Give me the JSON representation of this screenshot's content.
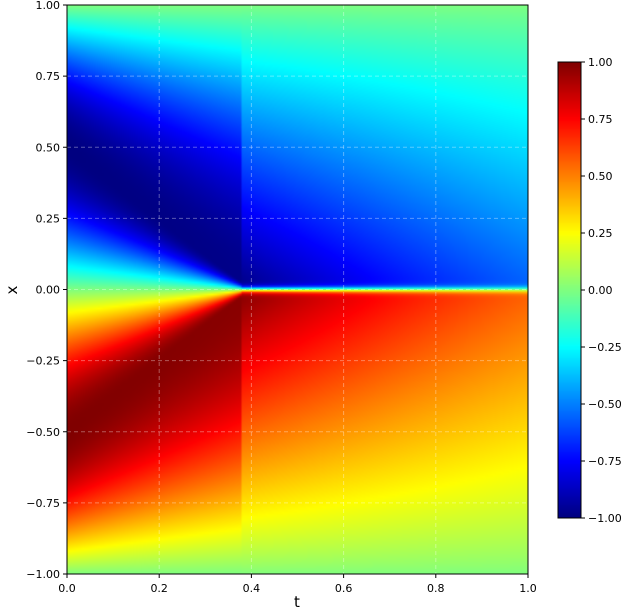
{
  "chart_data": {
    "type": "heatmap",
    "title": "",
    "xlabel": "t",
    "ylabel": "x",
    "xlim": [
      0.0,
      1.0
    ],
    "ylim": [
      -1.0,
      1.0
    ],
    "grid": true,
    "colormap": "jet",
    "colorbar": {
      "range": [
        -1.0,
        1.0
      ],
      "ticks": [
        "1.00",
        "0.75",
        "0.50",
        "0.25",
        "0.00",
        "−0.25",
        "−0.50",
        "−0.75",
        "−1.00"
      ],
      "tick_values": [
        1.0,
        0.75,
        0.5,
        0.25,
        0.0,
        -0.25,
        -0.5,
        -0.75,
        -1.0
      ]
    },
    "x_ticks": [
      "0.0",
      "0.2",
      "0.4",
      "0.6",
      "0.8",
      "1.0"
    ],
    "x_tick_values": [
      0.0,
      0.2,
      0.4,
      0.6,
      0.8,
      1.0
    ],
    "y_ticks": [
      "1.00",
      "0.75",
      "0.50",
      "0.25",
      "0.00",
      "−0.25",
      "−0.50",
      "−0.75",
      "−1.00"
    ],
    "y_tick_values": [
      1.0,
      0.75,
      0.5,
      0.25,
      0.0,
      -0.25,
      -0.5,
      -0.75,
      -1.0
    ],
    "field_description": "u(t,x): at t=0 approx -sin(pi*x); shock forms at x=0 near t=0.38; values decay toward 0 at larger |x| and later t"
  }
}
